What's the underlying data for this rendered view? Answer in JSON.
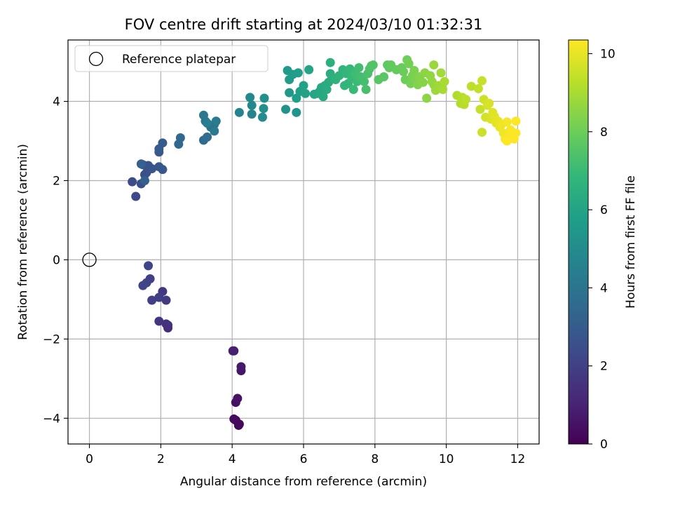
{
  "chart_data": {
    "type": "scatter",
    "title": "FOV centre drift starting at 2024/03/10 01:32:31",
    "xlabel": "Angular distance from reference (arcmin)",
    "ylabel": "Rotation from reference (arcmin)",
    "xlim": [
      -0.6,
      12.6
    ],
    "ylim": [
      -4.65,
      5.55
    ],
    "xticks": [
      0,
      2,
      4,
      6,
      8,
      10,
      12
    ],
    "yticks": [
      -4,
      -2,
      0,
      2,
      4
    ],
    "xtick_labels": [
      "0",
      "2",
      "4",
      "6",
      "8",
      "10",
      "12"
    ],
    "ytick_labels": [
      "−4",
      "−2",
      "0",
      "2",
      "4"
    ],
    "grid": true,
    "legend": {
      "position": "top-left",
      "entries": [
        "Reference platepar"
      ]
    },
    "reference": {
      "label": "Reference platepar",
      "x": 0,
      "y": 0,
      "marker": "open-circle"
    },
    "colorbar": {
      "label": "Hours from first FF file",
      "colormap": "viridis",
      "range": [
        0,
        10.35
      ],
      "ticks": [
        0,
        2,
        4,
        6,
        8,
        10
      ],
      "tick_labels": [
        "0",
        "2",
        "4",
        "6",
        "8",
        "10"
      ]
    },
    "points": [
      [
        4.18,
        -4.18,
        0.1
      ],
      [
        4.1,
        -4.05,
        0.15
      ],
      [
        4.2,
        -4.15,
        0.2
      ],
      [
        4.05,
        -4.02,
        0.3
      ],
      [
        4.1,
        -3.6,
        0.4
      ],
      [
        4.15,
        -3.5,
        0.5
      ],
      [
        4.25,
        -2.8,
        0.6
      ],
      [
        4.25,
        -2.7,
        0.7
      ],
      [
        4.05,
        -2.3,
        0.8
      ],
      [
        4.02,
        -2.3,
        0.9
      ],
      [
        2.2,
        -1.72,
        1.3
      ],
      [
        2.15,
        -1.62,
        1.4
      ],
      [
        2.2,
        -1.65,
        1.5
      ],
      [
        1.95,
        -1.55,
        1.6
      ],
      [
        2.05,
        -0.8,
        1.7
      ],
      [
        2.15,
        -1.02,
        1.8
      ],
      [
        1.95,
        -0.95,
        1.9
      ],
      [
        1.75,
        -1.02,
        2.0
      ],
      [
        1.7,
        -0.48,
        2.05
      ],
      [
        1.6,
        -0.58,
        2.1
      ],
      [
        1.5,
        -0.65,
        2.15
      ],
      [
        1.65,
        -0.15,
        2.2
      ],
      [
        1.3,
        1.6,
        2.3
      ],
      [
        1.2,
        1.97,
        2.4
      ],
      [
        1.45,
        1.92,
        2.5
      ],
      [
        1.55,
        2.15,
        2.55
      ],
      [
        1.6,
        2.2,
        2.6
      ],
      [
        1.5,
        2.4,
        2.65
      ],
      [
        1.65,
        2.38,
        2.7
      ],
      [
        1.75,
        2.3,
        2.75
      ],
      [
        1.95,
        2.35,
        2.8
      ],
      [
        2.05,
        2.28,
        2.85
      ],
      [
        1.95,
        2.72,
        2.9
      ],
      [
        1.95,
        2.8,
        2.95
      ],
      [
        2.05,
        2.95,
        3.0
      ],
      [
        1.55,
        2.0,
        3.1
      ],
      [
        1.45,
        2.42,
        3.2
      ],
      [
        2.5,
        2.92,
        3.4
      ],
      [
        2.55,
        3.08,
        3.5
      ],
      [
        3.2,
        3.02,
        3.6
      ],
      [
        3.3,
        3.1,
        3.7
      ],
      [
        3.4,
        3.35,
        3.8
      ],
      [
        3.5,
        3.42,
        3.9
      ],
      [
        3.25,
        3.5,
        4.0
      ],
      [
        3.2,
        3.65,
        4.1
      ],
      [
        3.5,
        3.25,
        4.2
      ],
      [
        3.55,
        3.5,
        4.3
      ],
      [
        3.3,
        3.45,
        4.4
      ],
      [
        4.2,
        3.72,
        4.6
      ],
      [
        4.55,
        3.68,
        4.7
      ],
      [
        4.55,
        3.9,
        4.8
      ],
      [
        4.5,
        4.1,
        4.9
      ],
      [
        4.85,
        3.6,
        5.0
      ],
      [
        4.88,
        3.82,
        5.1
      ],
      [
        4.9,
        4.08,
        5.2
      ],
      [
        5.5,
        3.8,
        5.3
      ],
      [
        5.8,
        3.72,
        5.4
      ],
      [
        5.6,
        4.22,
        5.5
      ],
      [
        5.55,
        4.78,
        5.6
      ],
      [
        5.6,
        4.55,
        5.65
      ],
      [
        5.7,
        4.68,
        5.7
      ],
      [
        5.85,
        4.72,
        5.75
      ],
      [
        5.8,
        4.08,
        5.8
      ],
      [
        5.9,
        4.25,
        5.85
      ],
      [
        6.0,
        4.4,
        5.9
      ],
      [
        6.05,
        4.2,
        5.95
      ],
      [
        6.15,
        4.8,
        6.0
      ],
      [
        6.3,
        4.18,
        6.05
      ],
      [
        6.4,
        4.2,
        6.1
      ],
      [
        6.45,
        4.25,
        6.15
      ],
      [
        6.5,
        4.35,
        6.2
      ],
      [
        6.55,
        4.12,
        6.25
      ],
      [
        6.6,
        4.4,
        6.3
      ],
      [
        6.65,
        4.3,
        6.35
      ],
      [
        6.7,
        4.48,
        6.4
      ],
      [
        6.75,
        4.7,
        6.45
      ],
      [
        6.8,
        4.6,
        6.5
      ],
      [
        6.75,
        4.98,
        6.55
      ],
      [
        6.9,
        4.55,
        6.6
      ],
      [
        7.0,
        4.65,
        6.65
      ],
      [
        7.1,
        4.8,
        6.7
      ],
      [
        7.15,
        4.4,
        6.75
      ],
      [
        7.25,
        4.45,
        6.8
      ],
      [
        7.2,
        4.7,
        6.85
      ],
      [
        7.3,
        4.82,
        6.9
      ],
      [
        7.35,
        4.6,
        6.95
      ],
      [
        7.4,
        4.3,
        7.0
      ],
      [
        7.5,
        4.5,
        7.05
      ],
      [
        7.45,
        4.7,
        7.1
      ],
      [
        7.55,
        4.85,
        7.15
      ],
      [
        7.6,
        4.62,
        7.2
      ],
      [
        7.7,
        4.5,
        7.25
      ],
      [
        7.75,
        4.3,
        7.3
      ],
      [
        7.8,
        4.7,
        7.35
      ],
      [
        7.85,
        4.82,
        7.4
      ],
      [
        7.9,
        4.9,
        7.45
      ],
      [
        7.95,
        4.92,
        7.5
      ],
      [
        8.1,
        4.55,
        7.6
      ],
      [
        8.25,
        4.62,
        7.65
      ],
      [
        8.35,
        4.92,
        7.7
      ],
      [
        8.4,
        4.85,
        7.75
      ],
      [
        8.45,
        4.92,
        7.8
      ],
      [
        8.6,
        4.8,
        7.85
      ],
      [
        8.75,
        4.85,
        7.9
      ],
      [
        8.8,
        4.75,
        7.95
      ],
      [
        8.85,
        4.55,
        8.0
      ],
      [
        8.9,
        5.05,
        8.05
      ],
      [
        8.95,
        4.95,
        8.1
      ],
      [
        9.0,
        4.45,
        8.15
      ],
      [
        9.05,
        4.65,
        8.2
      ],
      [
        9.1,
        4.78,
        8.25
      ],
      [
        9.15,
        4.55,
        8.3
      ],
      [
        9.2,
        4.42,
        8.35
      ],
      [
        9.25,
        4.62,
        8.4
      ],
      [
        9.35,
        4.48,
        8.45
      ],
      [
        9.4,
        4.72,
        8.5
      ],
      [
        9.45,
        4.08,
        8.55
      ],
      [
        9.55,
        4.65,
        8.6
      ],
      [
        9.6,
        4.5,
        8.65
      ],
      [
        9.65,
        4.42,
        8.7
      ],
      [
        9.65,
        4.92,
        8.75
      ],
      [
        9.7,
        4.28,
        8.8
      ],
      [
        9.8,
        4.4,
        8.85
      ],
      [
        9.85,
        4.72,
        8.9
      ],
      [
        9.9,
        4.3,
        8.95
      ],
      [
        9.95,
        4.5,
        9.0
      ],
      [
        10.3,
        4.15,
        9.1
      ],
      [
        10.4,
        3.95,
        9.15
      ],
      [
        10.45,
        4.1,
        9.2
      ],
      [
        10.5,
        3.92,
        9.25
      ],
      [
        10.55,
        4.05,
        9.3
      ],
      [
        10.7,
        4.38,
        9.35
      ],
      [
        10.9,
        4.32,
        9.4
      ],
      [
        10.95,
        3.8,
        9.45
      ],
      [
        11.0,
        4.52,
        9.5
      ],
      [
        11.0,
        3.22,
        9.55
      ],
      [
        11.05,
        4.05,
        9.6
      ],
      [
        11.1,
        3.6,
        9.65
      ],
      [
        11.15,
        3.9,
        9.7
      ],
      [
        11.2,
        3.95,
        9.75
      ],
      [
        11.25,
        3.55,
        9.8
      ],
      [
        11.3,
        3.72,
        9.85
      ],
      [
        11.35,
        3.62,
        9.9
      ],
      [
        11.4,
        3.45,
        9.95
      ],
      [
        11.45,
        3.5,
        10.0
      ],
      [
        11.5,
        3.35,
        10.05
      ],
      [
        11.55,
        3.42,
        10.1
      ],
      [
        11.6,
        3.2,
        10.15
      ],
      [
        11.65,
        3.05,
        10.2
      ],
      [
        11.7,
        3.48,
        10.22
      ],
      [
        11.75,
        3.15,
        10.25
      ],
      [
        11.8,
        3.28,
        10.28
      ],
      [
        11.85,
        3.12,
        10.3
      ],
      [
        11.9,
        3.05,
        10.32
      ],
      [
        11.95,
        3.2,
        10.33
      ],
      [
        11.95,
        3.5,
        10.34
      ],
      [
        11.7,
        3.0,
        10.35
      ]
    ]
  }
}
